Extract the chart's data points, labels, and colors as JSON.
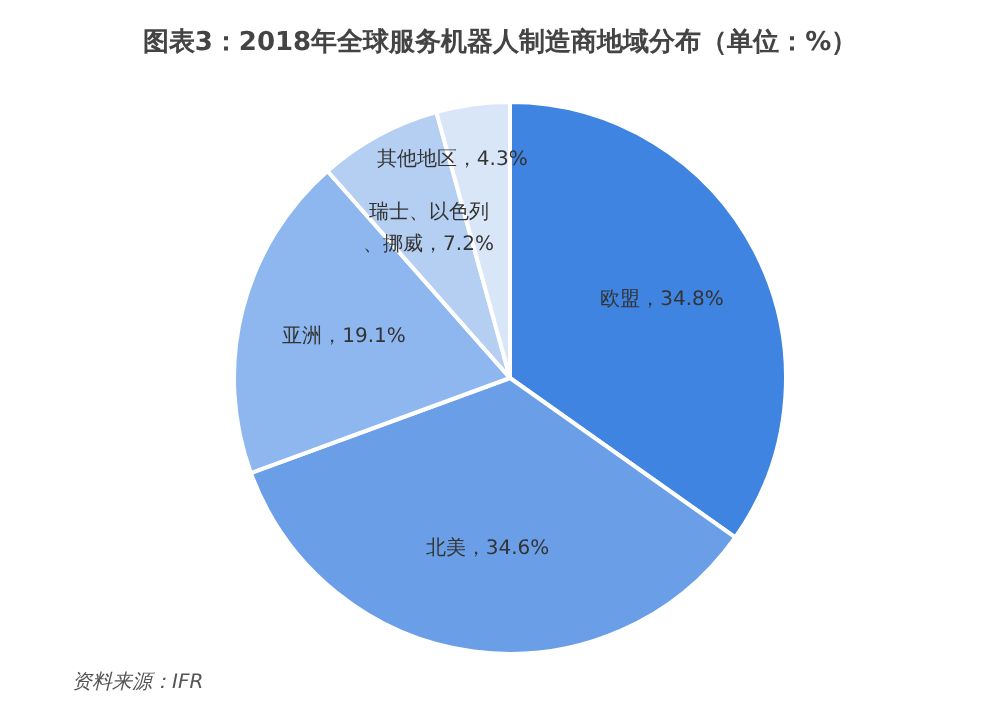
{
  "chart_data": {
    "type": "pie",
    "title": "图表3：2018年全球服务机器人制造商地域分布（单位：%）",
    "categories": [
      "欧盟",
      "北美",
      "亚洲",
      "瑞士、以色列、挪威",
      "其他地区"
    ],
    "values": [
      34.8,
      34.6,
      19.1,
      7.2,
      4.3
    ],
    "colors": [
      "#3f84e0",
      "#6a9fe8",
      "#8db7ee",
      "#b5cff3",
      "#d9e6f8"
    ],
    "value_labels": [
      "34.8%",
      "34.6%",
      "19.1%",
      "7.2%",
      "4.3%"
    ],
    "annotations": [
      "资料来源：IFR"
    ],
    "legend": false
  }
}
